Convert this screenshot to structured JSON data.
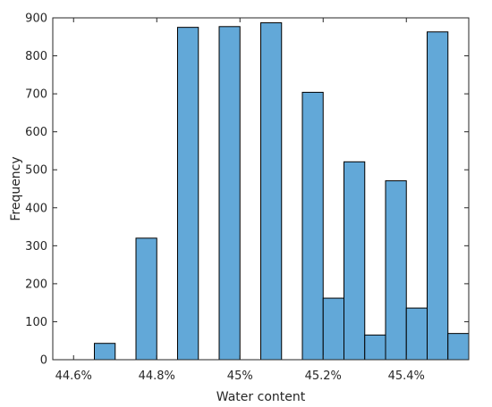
{
  "chart_data": {
    "type": "bar",
    "subtype": "histogram",
    "title": "",
    "xlabel": "Water content",
    "ylabel": "Frequency",
    "xlim": [
      44.55,
      45.55
    ],
    "ylim": [
      0,
      900
    ],
    "grid": false,
    "legend": "none",
    "bar_color": "#62a8d8",
    "edge_color": "#000000",
    "x_ticks": [
      {
        "value": 44.6,
        "label": "44.6%"
      },
      {
        "value": 44.8,
        "label": "44.8%"
      },
      {
        "value": 45.0,
        "label": "45%"
      },
      {
        "value": 45.2,
        "label": "45.2%"
      },
      {
        "value": 45.4,
        "label": "45.4%"
      }
    ],
    "y_ticks": [
      {
        "value": 0,
        "label": "0"
      },
      {
        "value": 100,
        "label": "100"
      },
      {
        "value": 200,
        "label": "200"
      },
      {
        "value": 300,
        "label": "300"
      },
      {
        "value": 400,
        "label": "400"
      },
      {
        "value": 500,
        "label": "500"
      },
      {
        "value": 600,
        "label": "600"
      },
      {
        "value": 700,
        "label": "700"
      },
      {
        "value": 800,
        "label": "800"
      },
      {
        "value": 900,
        "label": "900"
      }
    ],
    "bins": [
      {
        "start": 44.65,
        "end": 44.7,
        "count": 43
      },
      {
        "start": 44.75,
        "end": 44.8,
        "count": 320
      },
      {
        "start": 44.85,
        "end": 44.9,
        "count": 875
      },
      {
        "start": 44.95,
        "end": 45.0,
        "count": 877
      },
      {
        "start": 45.05,
        "end": 45.1,
        "count": 887
      },
      {
        "start": 45.15,
        "end": 45.2,
        "count": 704
      },
      {
        "start": 45.2,
        "end": 45.25,
        "count": 162
      },
      {
        "start": 45.25,
        "end": 45.3,
        "count": 521
      },
      {
        "start": 45.3,
        "end": 45.35,
        "count": 65
      },
      {
        "start": 45.35,
        "end": 45.4,
        "count": 471
      },
      {
        "start": 45.4,
        "end": 45.45,
        "count": 136
      },
      {
        "start": 45.45,
        "end": 45.5,
        "count": 863
      },
      {
        "start": 45.5,
        "end": 45.55,
        "count": 69
      }
    ]
  }
}
